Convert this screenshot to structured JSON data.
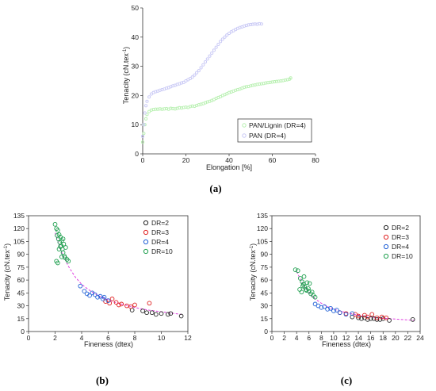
{
  "chart_data": [
    {
      "panel": "(a)",
      "type": "scatter",
      "xlabel": "Elongation [%]",
      "ylabel": "Tenacity (cN.tex",
      "ylabel_sup": "-1",
      "ylabel_close": ")",
      "xlim": [
        0,
        80
      ],
      "ylim": [
        0,
        50
      ],
      "xticks": [
        0,
        20,
        40,
        60,
        80
      ],
      "yticks": [
        0,
        10,
        20,
        30,
        40,
        50
      ],
      "legend_position": "bottom-right",
      "series": [
        {
          "name": "PAN/Lignin (DR=4)",
          "color": "#b7f0b0",
          "x": [
            0,
            0.5,
            1,
            1.5,
            2,
            3,
            4,
            5,
            6,
            7,
            8,
            9,
            10,
            11,
            12,
            13,
            14,
            15,
            16,
            17,
            18,
            19,
            20,
            21,
            22,
            23,
            24,
            25,
            26,
            27,
            28,
            29,
            30,
            31,
            32,
            33,
            34,
            35,
            36,
            37,
            38,
            39,
            40,
            41,
            42,
            43,
            44,
            45,
            46,
            47,
            48,
            49,
            50,
            51,
            52,
            53,
            54,
            55,
            56,
            57,
            58,
            59,
            60,
            61,
            62,
            63,
            64,
            65,
            66,
            67,
            68,
            68.5
          ],
          "y": [
            4,
            7,
            10,
            12,
            13.5,
            14.5,
            15,
            15.2,
            15.3,
            15.3,
            15.4,
            15.3,
            15.4,
            15.5,
            15.3,
            15.6,
            15.5,
            15.4,
            15.6,
            15.8,
            15.7,
            15.9,
            16,
            15.9,
            16.2,
            16.4,
            16.3,
            16.6,
            16.8,
            17,
            17.2,
            17.5,
            17.8,
            18,
            18.3,
            18.6,
            19,
            19.3,
            19.6,
            20,
            20.3,
            20.6,
            21,
            21.2,
            21.5,
            21.8,
            22,
            22.2,
            22.5,
            22.8,
            23,
            23.1,
            23.3,
            23.5,
            23.6,
            23.8,
            23.9,
            24,
            24.1,
            24.3,
            24.4,
            24.5,
            24.6,
            24.7,
            24.8,
            24.9,
            25,
            25.1,
            25.3,
            25.4,
            25.6,
            26
          ]
        },
        {
          "name": "PAN (DR=4)",
          "color": "#c8c8f5",
          "x": [
            0,
            0.5,
            1,
            1.5,
            2,
            3,
            4,
            5,
            6,
            7,
            8,
            9,
            10,
            11,
            12,
            13,
            14,
            15,
            16,
            17,
            18,
            19,
            20,
            21,
            22,
            23,
            24,
            25,
            26,
            27,
            28,
            29,
            30,
            31,
            32,
            33,
            34,
            35,
            36,
            37,
            38,
            39,
            40,
            41,
            42,
            43,
            44,
            45,
            46,
            47,
            48,
            49,
            50,
            51,
            52,
            53,
            54,
            55
          ],
          "y": [
            6,
            10,
            14,
            16.5,
            18,
            19.5,
            20.5,
            21,
            21.3,
            21.5,
            21.8,
            22,
            22.2,
            22.5,
            22.7,
            23,
            23.3,
            23.5,
            23.8,
            24,
            24.3,
            24.5,
            25,
            25.4,
            25.8,
            26.3,
            27,
            27.8,
            28.5,
            29.5,
            30.5,
            31.5,
            32.5,
            33.5,
            34.5,
            35.5,
            36.5,
            37.5,
            38.5,
            39.3,
            40,
            40.7,
            41.3,
            41.8,
            42.2,
            42.6,
            43,
            43.3,
            43.5,
            43.8,
            44,
            44.2,
            44.3,
            44.4,
            44.5,
            44.4,
            44.6,
            44.5
          ]
        }
      ]
    },
    {
      "panel": "(b)",
      "type": "scatter",
      "xlabel": "Fineness (dtex)",
      "ylabel": "Tenacity (cN.tex",
      "ylabel_sup": "-1",
      "ylabel_close": ")",
      "xlim": [
        0,
        12
      ],
      "ylim": [
        0,
        135
      ],
      "xticks": [
        0,
        2,
        4,
        6,
        8,
        10,
        12
      ],
      "yticks": [
        0,
        15,
        30,
        45,
        60,
        75,
        90,
        105,
        120,
        135
      ],
      "legend_position": "top-right",
      "fit_color": "#e040e0",
      "fit_x": [
        2.0,
        2.5,
        3.0,
        3.5,
        4.0,
        4.5,
        5.0,
        5.5,
        6.0,
        6.5,
        7.0,
        7.5,
        8.0,
        8.5,
        9.0,
        9.5,
        10.0,
        10.5,
        11.0,
        11.5
      ],
      "fit_y": [
        115,
        92,
        76,
        64,
        55,
        49,
        44,
        40,
        37,
        34,
        32,
        30,
        28,
        26.5,
        25,
        24,
        23,
        22,
        21,
        20
      ],
      "series": [
        {
          "name": "DR=2",
          "color": "#222222",
          "x": [
            7.8,
            8.6,
            8.9,
            9.3,
            9.6,
            10.0,
            10.5,
            10.7,
            11.5
          ],
          "y": [
            25,
            24,
            22,
            22,
            20,
            21,
            20,
            21,
            18
          ]
        },
        {
          "name": "DR=3",
          "color": "#e02020",
          "x": [
            5.8,
            6.1,
            6.3,
            6.6,
            6.8,
            7.0,
            7.4,
            7.7,
            8.0,
            9.1
          ],
          "y": [
            35,
            33,
            38,
            34,
            31,
            32,
            30,
            29,
            31,
            33
          ]
        },
        {
          "name": "DR=4",
          "color": "#1f5fd6",
          "x": [
            3.9,
            4.2,
            4.4,
            4.6,
            4.8,
            5.0,
            5.2,
            5.4,
            5.6,
            5.7,
            6.0
          ],
          "y": [
            53,
            47,
            44,
            42,
            45,
            43,
            40,
            41,
            38,
            40,
            36
          ]
        },
        {
          "name": "DR=10",
          "color": "#1f9f4f",
          "x": [
            2.0,
            2.1,
            2.15,
            2.2,
            2.25,
            2.3,
            2.35,
            2.4,
            2.45,
            2.5,
            2.55,
            2.6,
            2.65,
            2.7,
            2.8,
            2.9,
            3.0,
            2.1,
            2.2,
            2.3,
            2.5,
            2.6,
            2.75,
            2.4
          ],
          "y": [
            125,
            120,
            112,
            118,
            108,
            113,
            104,
            110,
            100,
            106,
            96,
            92,
            102,
            88,
            98,
            84,
            82,
            82,
            80,
            96,
            87,
            108,
            86,
            99
          ]
        }
      ]
    },
    {
      "panel": "(c)",
      "type": "scatter",
      "xlabel": "Fineness (dtex)",
      "ylabel": "Tenacity (cN.tex",
      "ylabel_sup": "-1",
      "ylabel_close": ")",
      "xlim": [
        0,
        24
      ],
      "ylim": [
        0,
        135
      ],
      "xticks": [
        0,
        2,
        4,
        6,
        8,
        10,
        12,
        14,
        16,
        18,
        20,
        22,
        24
      ],
      "yticks": [
        0,
        15,
        30,
        45,
        60,
        75,
        90,
        105,
        120,
        135
      ],
      "legend_position": "top-right",
      "fit_color": "#e040e0",
      "fit_x": [
        4,
        5,
        6,
        7,
        8,
        9,
        10,
        11,
        12,
        13,
        14,
        15,
        16,
        17,
        18,
        19,
        20,
        21,
        22,
        23
      ],
      "fit_y": [
        70,
        55,
        45,
        38,
        33,
        29,
        26,
        24,
        22,
        20.5,
        19,
        18,
        17,
        16,
        15.5,
        15,
        14.5,
        14,
        13.5,
        13
      ],
      "series": [
        {
          "name": "DR=2",
          "color": "#222222",
          "x": [
            13,
            14,
            14.5,
            15,
            15.5,
            16,
            16.5,
            17,
            17.5,
            18,
            19,
            22.8
          ],
          "y": [
            17,
            16,
            15,
            16,
            14,
            15,
            15,
            14,
            14,
            15,
            13,
            14
          ]
        },
        {
          "name": "DR=3",
          "color": "#e02020",
          "x": [
            11,
            12,
            13.5,
            14,
            15,
            15.5,
            16.2,
            17,
            17.8,
            18.5
          ],
          "y": [
            22,
            21,
            20,
            18,
            19,
            17,
            20,
            16,
            17,
            16
          ]
        },
        {
          "name": "DR=4",
          "color": "#1f5fd6",
          "x": [
            7,
            7.5,
            8,
            8.5,
            9,
            9.5,
            10,
            10.5,
            11,
            12,
            13
          ],
          "y": [
            32,
            30,
            28,
            29,
            26,
            27,
            24,
            25,
            22,
            20,
            21
          ]
        },
        {
          "name": "DR=10",
          "color": "#1f9f4f",
          "x": [
            3.8,
            4.2,
            4.6,
            4.9,
            5.1,
            5.3,
            5.5,
            5.7,
            5.9,
            6.1,
            6.3,
            6.5,
            6.7,
            7.0,
            4.5,
            5.0,
            5.6,
            6.0,
            5.2,
            4.8
          ],
          "y": [
            72,
            71,
            62,
            58,
            55,
            52,
            49,
            57,
            50,
            56,
            44,
            46,
            42,
            40,
            49,
            53,
            48,
            47,
            64,
            46
          ]
        }
      ]
    }
  ]
}
